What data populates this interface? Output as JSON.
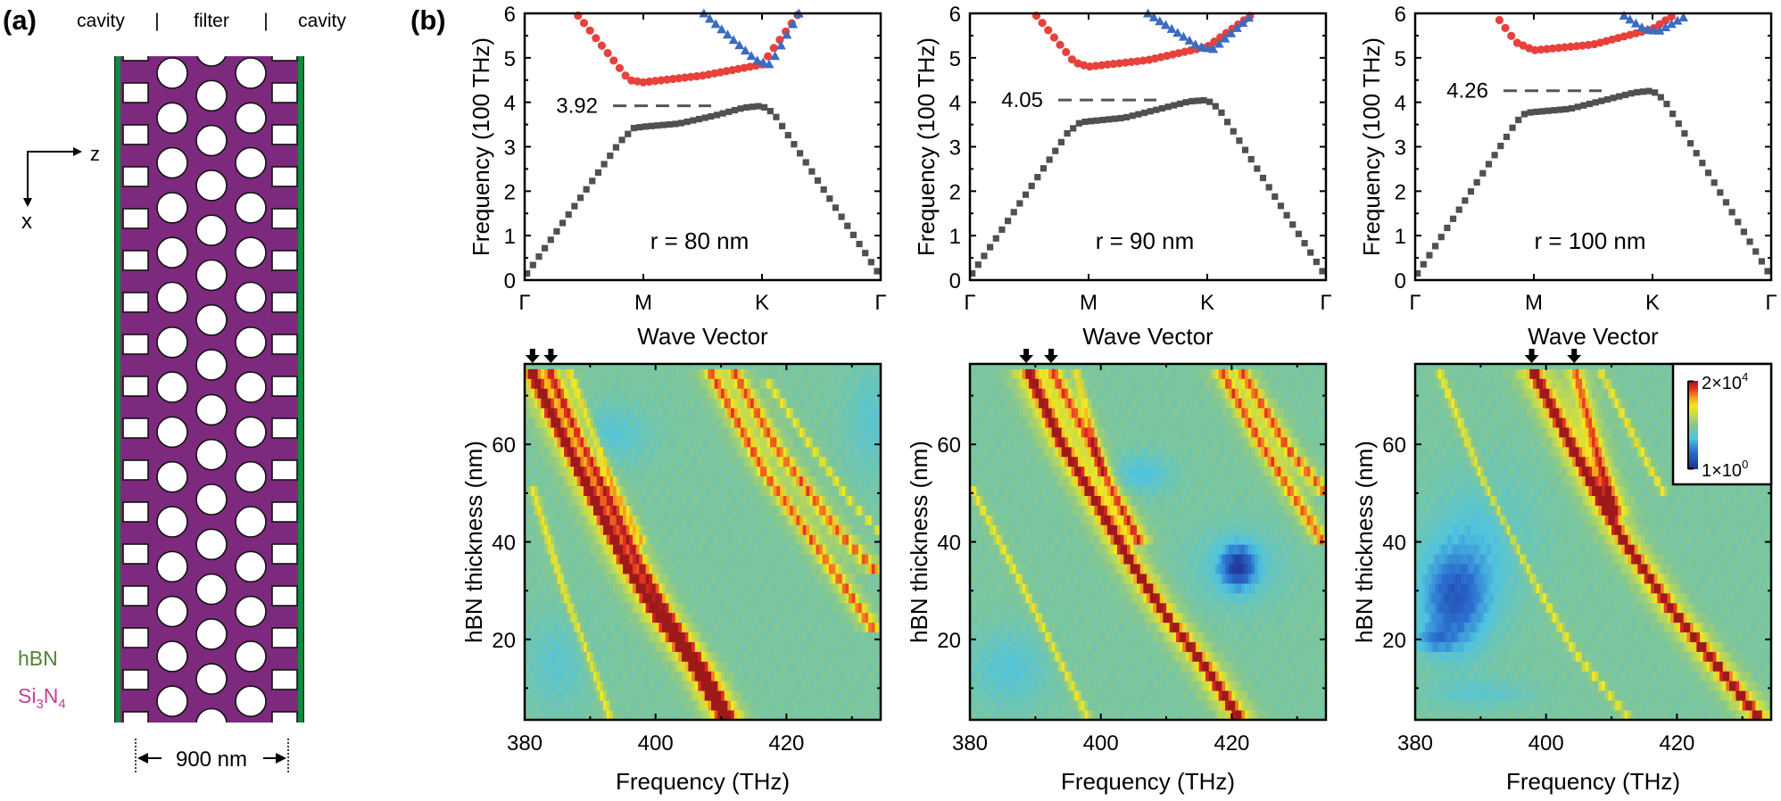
{
  "panel_a": {
    "label": "(a)",
    "header": [
      "cavity",
      "|",
      "filter",
      "|",
      "cavity"
    ],
    "axis_z": "z",
    "axis_x": "x",
    "legend": {
      "hbn": "hBN",
      "si3n4": {
        "si": "Si",
        "sub1": "3",
        "n": "N",
        "sub2": "4"
      }
    },
    "dimension": "900 nm",
    "colors": {
      "si3n4": "#7d2a7e",
      "hbn": "#118a40",
      "hbn_text": "#4f8233",
      "si3n4_text": "#c83c96"
    }
  },
  "panel_b": {
    "label": "(b)"
  },
  "chart_data": [
    {
      "type": "scatter",
      "xlabel": "Wave Vector",
      "ylabel": "Frequency (100 THz)",
      "xticks": [
        "Γ",
        "M",
        "K",
        "Γ"
      ],
      "ylim": [
        0,
        6
      ],
      "yticks": [
        0,
        1,
        2,
        3,
        4,
        5,
        6
      ],
      "annotation": "r = 80 nm",
      "band_edge": {
        "value": 3.92,
        "label": "3.92"
      },
      "series": [
        {
          "marker": "square",
          "color": "#505050",
          "points": [
            [
              0.02,
              0.15
            ],
            [
              0.8,
              3.1
            ],
            [
              0.92,
              3.42
            ],
            [
              1.0,
              3.45
            ],
            [
              1.3,
              3.52
            ],
            [
              1.6,
              3.7
            ],
            [
              1.85,
              3.88
            ],
            [
              2.0,
              3.92
            ],
            [
              2.1,
              3.75
            ],
            [
              2.97,
              0.2
            ]
          ]
        },
        {
          "marker": "circle",
          "color": "#e8413c",
          "points": [
            [
              0.45,
              5.95
            ],
            [
              0.88,
              4.5
            ],
            [
              1.0,
              4.45
            ],
            [
              1.5,
              4.6
            ],
            [
              2.0,
              4.85
            ],
            [
              2.31,
              6.0
            ]
          ]
        },
        {
          "marker": "triangle",
          "color": "#3a6cc0",
          "points": [
            [
              1.51,
              6.0
            ],
            [
              1.95,
              4.95
            ],
            [
              2.07,
              4.85
            ],
            [
              2.31,
              6.0
            ]
          ]
        }
      ]
    },
    {
      "type": "scatter",
      "xlabel": "Wave Vector",
      "ylabel": "Frequency (100 THz)",
      "xticks": [
        "Γ",
        "M",
        "K",
        "Γ"
      ],
      "ylim": [
        0,
        6
      ],
      "yticks": [
        0,
        1,
        2,
        3,
        4,
        5,
        6
      ],
      "annotation": "r = 90 nm",
      "band_edge": {
        "value": 4.05,
        "label": "4.05"
      },
      "series": [
        {
          "marker": "square",
          "color": "#505050",
          "points": [
            [
              0.02,
              0.15
            ],
            [
              0.82,
              3.3
            ],
            [
              0.93,
              3.55
            ],
            [
              1.0,
              3.57
            ],
            [
              1.3,
              3.65
            ],
            [
              1.6,
              3.85
            ],
            [
              1.85,
              4.02
            ],
            [
              2.0,
              4.05
            ],
            [
              2.1,
              3.85
            ],
            [
              2.97,
              0.2
            ]
          ]
        },
        {
          "marker": "circle",
          "color": "#e8413c",
          "points": [
            [
              0.56,
              5.95
            ],
            [
              0.88,
              4.9
            ],
            [
              1.0,
              4.8
            ],
            [
              1.5,
              4.95
            ],
            [
              2.0,
              5.25
            ],
            [
              2.39,
              6.0
            ]
          ]
        },
        {
          "marker": "triangle",
          "color": "#3a6cc0",
          "points": [
            [
              1.5,
              6.0
            ],
            [
              1.93,
              5.25
            ],
            [
              2.05,
              5.2
            ],
            [
              2.39,
              6.0
            ]
          ]
        }
      ]
    },
    {
      "type": "scatter",
      "xlabel": "Wave Vector",
      "ylabel": "Frequency (100 THz)",
      "xticks": [
        "Γ",
        "M",
        "K",
        "Γ"
      ],
      "ylim": [
        0,
        6
      ],
      "yticks": [
        0,
        1,
        2,
        3,
        4,
        5,
        6
      ],
      "annotation": "r = 100 nm",
      "band_edge": {
        "value": 4.26,
        "label": "4.26"
      },
      "series": [
        {
          "marker": "square",
          "color": "#505050",
          "points": [
            [
              0.02,
              0.15
            ],
            [
              0.85,
              3.55
            ],
            [
              0.93,
              3.76
            ],
            [
              1.0,
              3.78
            ],
            [
              1.3,
              3.85
            ],
            [
              1.6,
              4.05
            ],
            [
              1.85,
              4.22
            ],
            [
              2.0,
              4.26
            ],
            [
              2.1,
              4.05
            ],
            [
              2.97,
              0.2
            ]
          ]
        },
        {
          "marker": "circle",
          "color": "#e8413c",
          "points": [
            [
              0.71,
              5.85
            ],
            [
              0.85,
              5.35
            ],
            [
              1.0,
              5.17
            ],
            [
              1.5,
              5.3
            ],
            [
              2.0,
              5.65
            ],
            [
              2.2,
              6.0
            ]
          ]
        },
        {
          "marker": "triangle",
          "color": "#3a6cc0",
          "points": [
            [
              1.76,
              5.95
            ],
            [
              1.93,
              5.65
            ],
            [
              2.05,
              5.6
            ],
            [
              2.3,
              5.97
            ]
          ]
        }
      ]
    },
    {
      "type": "heatmap",
      "xlabel": "Frequency (THz)",
      "ylabel": "hBN thickness (nm)",
      "xlim": [
        380,
        434.4
      ],
      "ylim": [
        3.5,
        76.5
      ],
      "xticks": [
        380,
        400,
        420
      ],
      "yticks": [
        20,
        40,
        60
      ],
      "arrows_thz": [
        381.2,
        384.0
      ],
      "ridges": [
        {
          "strength": "strong",
          "points": [
            [
              380.9,
              75.3
            ],
            [
              384.8,
              64.3
            ],
            [
              390.2,
              49.6
            ],
            [
              395.7,
              34.8
            ],
            [
              400.2,
              25
            ],
            [
              406.1,
              14
            ],
            [
              410.2,
              4.4
            ]
          ]
        },
        {
          "strength": "medium",
          "points": [
            [
              383.6,
              76
            ],
            [
              387.5,
              64
            ],
            [
              392.5,
              50
            ],
            [
              397.5,
              36
            ],
            [
              402,
              25
            ],
            [
              407.5,
              14
            ],
            [
              411.5,
              4
            ]
          ]
        },
        {
          "strength": "weak",
          "points": [
            [
              386.5,
              76
            ],
            [
              390,
              64
            ],
            [
              394,
              50
            ],
            [
              398,
              40
            ]
          ]
        },
        {
          "strength": "medium",
          "points": [
            [
              408,
              76
            ],
            [
              416.6,
              54.4
            ],
            [
              424.3,
              39.7
            ],
            [
              433.4,
              22
            ]
          ]
        },
        {
          "strength": "medium",
          "points": [
            [
              411.6,
              76
            ],
            [
              418.8,
              58.7
            ],
            [
              427.9,
              42.2
            ],
            [
              434.4,
              33
            ]
          ]
        },
        {
          "strength": "weak",
          "points": [
            [
              416.6,
              74
            ],
            [
              424.3,
              58.7
            ],
            [
              430,
              48
            ],
            [
              434.4,
              42
            ]
          ]
        },
        {
          "strength": "weak",
          "points": [
            [
              381,
              52
            ],
            [
              386,
              30
            ],
            [
              391,
              12
            ],
            [
              393,
              4
            ]
          ]
        }
      ],
      "low_regions": [
        {
          "f": 393,
          "t": 62,
          "rf": 6,
          "rt": 6,
          "depth": 0.1
        },
        {
          "f": 385,
          "t": 15,
          "rf": 5,
          "rt": 10,
          "depth": 0.08
        },
        {
          "f": 433,
          "t": 65,
          "rf": 4,
          "rt": 12,
          "depth": 0.08
        }
      ]
    },
    {
      "type": "heatmap",
      "xlabel": "Frequency (THz)",
      "ylabel": "hBN thickness (nm)",
      "xlim": [
        380,
        434.4
      ],
      "ylim": [
        3.5,
        76.5
      ],
      "xticks": [
        380,
        400,
        420
      ],
      "yticks": [
        20,
        40,
        60
      ],
      "arrows_thz": [
        388.6,
        392.4
      ],
      "ridges": [
        {
          "strength": "strong",
          "points": [
            [
              388.6,
              76
            ],
            [
              393.9,
              60.5
            ],
            [
              399.8,
              47
            ],
            [
              404.5,
              36
            ],
            [
              409.9,
              25
            ],
            [
              416.2,
              14
            ],
            [
              421.1,
              4
            ]
          ]
        },
        {
          "strength": "medium",
          "points": [
            [
              392.3,
              76
            ],
            [
              398.4,
              60.5
            ],
            [
              402,
              50
            ],
            [
              406,
              40
            ]
          ]
        },
        {
          "strength": "weak",
          "points": [
            [
              396.1,
              76
            ],
            [
              400.2,
              54.5
            ]
          ]
        },
        {
          "strength": "medium",
          "points": [
            [
              418,
              76
            ],
            [
              424.3,
              60.5
            ],
            [
              433,
              42
            ],
            [
              434.4,
              39
            ]
          ]
        },
        {
          "strength": "medium",
          "points": [
            [
              421.1,
              76
            ],
            [
              428.9,
              58.6
            ],
            [
              434.4,
              50
            ]
          ]
        },
        {
          "strength": "weak",
          "points": [
            [
              380.2,
              51.3
            ],
            [
              388,
              31
            ],
            [
              398,
              4
            ]
          ]
        }
      ],
      "low_regions": [
        {
          "f": 421,
          "t": 35,
          "rf": 2.5,
          "rt": 4,
          "depth": 0.35
        },
        {
          "f": 421,
          "t": 35,
          "rf": 7,
          "rt": 8,
          "depth": 0.1
        },
        {
          "f": 406,
          "t": 54,
          "rf": 5,
          "rt": 4,
          "depth": 0.12
        },
        {
          "f": 386,
          "t": 14,
          "rf": 6,
          "rt": 8,
          "depth": 0.1
        }
      ]
    },
    {
      "type": "heatmap",
      "xlabel": "Frequency (THz)",
      "ylabel": "hBN thickness (nm)",
      "xlim": [
        380,
        434.4
      ],
      "ylim": [
        3.5,
        76.5
      ],
      "xticks": [
        380,
        400,
        420
      ],
      "yticks": [
        20,
        40,
        60
      ],
      "arrows_thz": [
        397.8,
        404.3
      ],
      "ridges": [
        {
          "strength": "strong",
          "points": [
            [
              397.7,
              76
            ],
            [
              404.3,
              58.6
            ],
            [
              411.6,
              40.8
            ],
            [
              418.9,
              26.7
            ],
            [
              426.6,
              13.8
            ],
            [
              432.5,
              4
            ]
          ]
        },
        {
          "strength": "medium",
          "points": [
            [
              404.3,
              76
            ],
            [
              408.4,
              55.6
            ],
            [
              411,
              45
            ]
          ]
        },
        {
          "strength": "weak",
          "points": [
            [
              383.4,
              76
            ],
            [
              390.2,
              53.2
            ],
            [
              398,
              32.3
            ],
            [
              404.3,
              17.6
            ],
            [
              412.5,
              4
            ]
          ]
        },
        {
          "strength": "weak",
          "points": [
            [
              408,
              76
            ],
            [
              414,
              60
            ],
            [
              418,
              50
            ]
          ]
        }
      ],
      "low_regions": [
        {
          "f": 386,
          "t": 28,
          "rf": 5,
          "rt": 10,
          "depth": 0.3
        },
        {
          "f": 383,
          "t": 20,
          "rf": 3,
          "rt": 2.5,
          "depth": 0.15
        },
        {
          "f": 390,
          "t": 40,
          "rf": 8,
          "rt": 14,
          "depth": 0.1
        },
        {
          "f": 390,
          "t": 9,
          "rf": 8,
          "rt": 3,
          "depth": 0.08
        }
      ],
      "colorbar": {
        "scale": "log",
        "range": [
          1,
          20000
        ],
        "max_label": "2×10",
        "max_exp": "4",
        "min_label": "1×10",
        "min_exp": "0"
      }
    }
  ]
}
